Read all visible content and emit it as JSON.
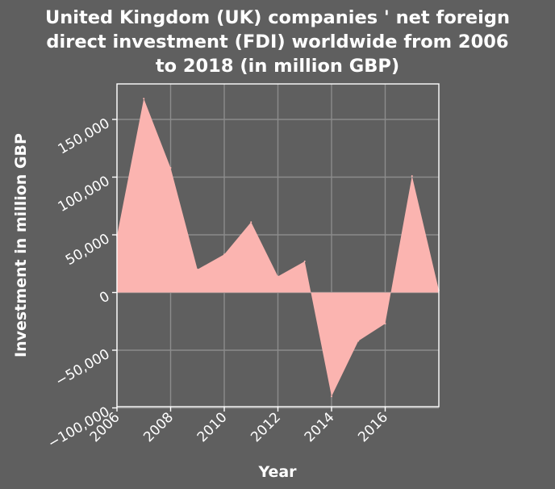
{
  "chart_data": {
    "type": "area",
    "title_lines": [
      "United Kingdom (UK) companies ' net foreign",
      "direct investment (FDI) worldwide from 2006",
      "to 2018 (in million GBP)"
    ],
    "xlabel": "Year",
    "ylabel": "Investment in million GBP",
    "x": [
      2006,
      2007,
      2008,
      2009,
      2010,
      2011,
      2012,
      2013,
      2014,
      2015,
      2016,
      2017,
      2018
    ],
    "values": [
      49000,
      168000,
      108000,
      20000,
      33000,
      61000,
      14000,
      27000,
      -90000,
      -42000,
      -27000,
      101000,
      2000
    ],
    "xlim": [
      2006,
      2018
    ],
    "ylim": [
      -100000,
      180000
    ],
    "x_ticks": [
      2006,
      2008,
      2010,
      2012,
      2014,
      2016
    ],
    "x_tick_labels": [
      "2006",
      "2008",
      "2010",
      "2012",
      "2014",
      "2016"
    ],
    "y_ticks": [
      -100000,
      -50000,
      0,
      50000,
      100000,
      150000
    ],
    "y_tick_labels": [
      "−100,000",
      "−50,000",
      "0",
      "50,000",
      "100,000",
      "150,000"
    ],
    "grid": true,
    "legend": "none",
    "colors": {
      "background": "#5f5f5f",
      "area_fill": "#fbb4b0",
      "grid": "#8c8c8c",
      "axes": "#ffffff",
      "text": "#ffffff"
    }
  }
}
